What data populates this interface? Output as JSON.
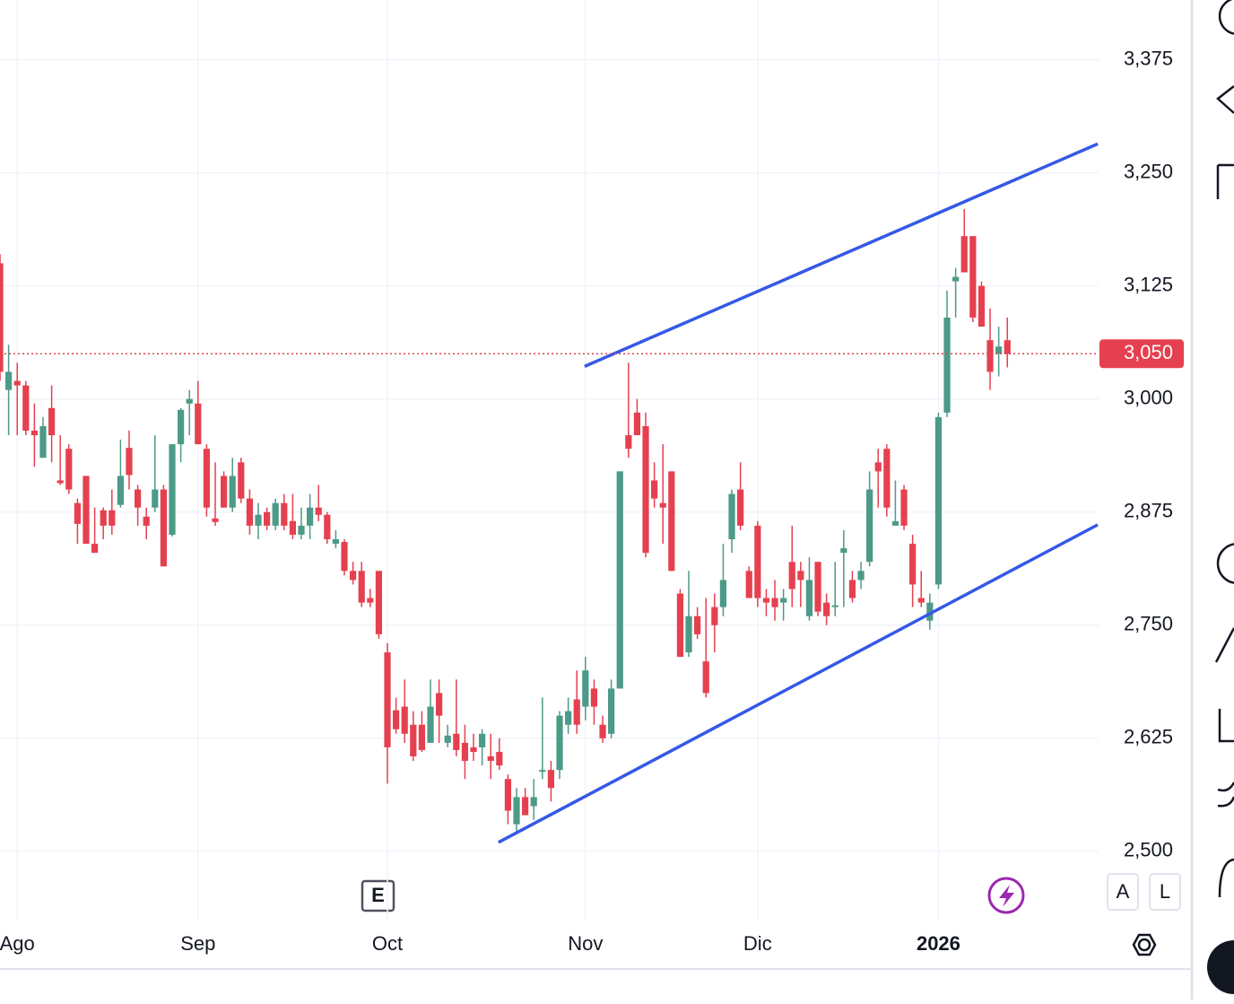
{
  "chart_data": {
    "type": "candlestick",
    "xticks": [
      {
        "value": 2,
        "label": "Ago"
      },
      {
        "value": 23,
        "label": "Sep"
      },
      {
        "value": 45,
        "label": "Oct"
      },
      {
        "value": 68,
        "label": "Nov"
      },
      {
        "value": 88,
        "label": "Dic"
      },
      {
        "value": 109,
        "label": "2026"
      }
    ],
    "xlim": [
      0,
      127.6
    ],
    "ylim": [
      2370,
      3441
    ],
    "yticks": [
      {
        "value": 2500,
        "label": "2,500"
      },
      {
        "value": 2625,
        "label": "2,625"
      },
      {
        "value": 2750,
        "label": "2,750"
      },
      {
        "value": 2875,
        "label": "2,875"
      },
      {
        "value": 3000,
        "label": "3,000"
      },
      {
        "value": 3125,
        "label": "3,125"
      },
      {
        "value": 3250,
        "label": "3,250"
      },
      {
        "value": 3375,
        "label": "3,375"
      }
    ],
    "grid": true,
    "up_color": "#4c9a87",
    "down_color": "#e5404f",
    "open": [
      3150,
      3010,
      3020,
      3015,
      2965,
      2935,
      2990,
      2910,
      2945,
      2885,
      2915,
      2840,
      2877,
      2877,
      2883,
      2946,
      2900,
      2870,
      2880,
      2900,
      2850,
      2950,
      2995,
      2995,
      2945,
      2868,
      2915,
      2880,
      2930,
      2890,
      2860,
      2875,
      2860,
      2885,
      2865,
      2850,
      2860,
      2880,
      2872,
      2840,
      2842,
      2810,
      2810,
      2780,
      2810,
      2720,
      2656,
      2660,
      2640,
      2640,
      2620,
      2675,
      2620,
      2630,
      2620,
      2615,
      2615,
      2605,
      2610,
      2580,
      2530,
      2560,
      2550,
      2588,
      2590,
      2590,
      2640,
      2668,
      2660,
      2680,
      2640,
      2630,
      2680,
      2960,
      2985,
      2970,
      2910,
      2885,
      2920,
      2785,
      2720,
      2760,
      2710,
      2770,
      2770,
      2845,
      2900,
      2810,
      2860,
      2780,
      2780,
      2775,
      2820,
      2810,
      2760,
      2820,
      2775,
      2770,
      2830,
      2800,
      2800,
      2820,
      2930,
      2945,
      2860,
      2900,
      2840,
      2780,
      2755,
      2795,
      2985,
      3130,
      3180,
      3180,
      3125,
      3065,
      3050,
      3065
    ],
    "high": [
      3160,
      3060,
      3040,
      3020,
      2995,
      2980,
      3015,
      2960,
      2950,
      2890,
      2915,
      2880,
      2880,
      2900,
      2955,
      2965,
      2905,
      2880,
      2960,
      2905,
      2950,
      2990,
      3010,
      3020,
      2950,
      2930,
      2920,
      2935,
      2935,
      2900,
      2885,
      2880,
      2890,
      2895,
      2895,
      2880,
      2895,
      2905,
      2875,
      2855,
      2845,
      2820,
      2820,
      2790,
      2810,
      2730,
      2670,
      2690,
      2655,
      2655,
      2690,
      2690,
      2640,
      2690,
      2640,
      2630,
      2635,
      2630,
      2625,
      2585,
      2570,
      2570,
      2580,
      2670,
      2600,
      2655,
      2670,
      2700,
      2715,
      2690,
      2650,
      2690,
      2920,
      3040,
      3000,
      2985,
      2930,
      2950,
      2920,
      2790,
      2810,
      2770,
      2780,
      2785,
      2840,
      2900,
      2930,
      2815,
      2865,
      2790,
      2800,
      2790,
      2860,
      2820,
      2825,
      2820,
      2785,
      2820,
      2855,
      2810,
      2820,
      2920,
      2945,
      2950,
      2910,
      2905,
      2850,
      2810,
      2785,
      2985,
      3120,
      3145,
      3210,
      3180,
      3130,
      3100,
      3080,
      3090
    ],
    "low": [
      3020,
      2960,
      2960,
      2960,
      2925,
      2935,
      2930,
      2905,
      2895,
      2840,
      2840,
      2830,
      2845,
      2850,
      2880,
      2900,
      2860,
      2845,
      2875,
      2815,
      2848,
      2930,
      2960,
      2950,
      2870,
      2860,
      2880,
      2875,
      2885,
      2850,
      2845,
      2855,
      2855,
      2855,
      2845,
      2845,
      2845,
      2865,
      2840,
      2835,
      2805,
      2795,
      2770,
      2770,
      2735,
      2575,
      2630,
      2620,
      2600,
      2610,
      2620,
      2620,
      2615,
      2605,
      2580,
      2600,
      2595,
      2580,
      2590,
      2530,
      2520,
      2540,
      2535,
      2580,
      2555,
      2580,
      2630,
      2630,
      2645,
      2640,
      2620,
      2625,
      2680,
      2935,
      2960,
      2825,
      2880,
      2840,
      2810,
      2715,
      2715,
      2735,
      2670,
      2720,
      2760,
      2830,
      2855,
      2780,
      2770,
      2760,
      2755,
      2755,
      2770,
      2770,
      2755,
      2760,
      2750,
      2760,
      2770,
      2775,
      2790,
      2815,
      2880,
      2870,
      2860,
      2855,
      2770,
      2770,
      2745,
      2790,
      2980,
      3090,
      3140,
      3085,
      3080,
      3010,
      3025,
      3035
    ],
    "close": [
      3030,
      3030,
      3015,
      2965,
      2960,
      2970,
      2960,
      2907,
      2900,
      2862,
      2840,
      2830,
      2860,
      2860,
      2915,
      2916,
      2880,
      2860,
      2900,
      2815,
      2950,
      2988,
      3000,
      2950,
      2880,
      2864,
      2880,
      2915,
      2890,
      2860,
      2872,
      2860,
      2885,
      2860,
      2850,
      2860,
      2880,
      2872,
      2845,
      2845,
      2810,
      2800,
      2775,
      2775,
      2740,
      2615,
      2635,
      2630,
      2605,
      2612,
      2660,
      2650,
      2628,
      2612,
      2600,
      2610,
      2630,
      2600,
      2595,
      2545,
      2560,
      2540,
      2560,
      2590,
      2570,
      2650,
      2655,
      2640,
      2700,
      2660,
      2625,
      2680,
      2920,
      2945,
      2960,
      2830,
      2890,
      2880,
      2810,
      2715,
      2760,
      2740,
      2675,
      2750,
      2800,
      2895,
      2860,
      2780,
      2780,
      2775,
      2770,
      2780,
      2790,
      2800,
      2800,
      2765,
      2760,
      2772,
      2835,
      2780,
      2810,
      2900,
      2920,
      2880,
      2865,
      2860,
      2795,
      2775,
      2775,
      2980,
      3090,
      3135,
      3140,
      3090,
      3080,
      3030,
      3058,
      3050
    ],
    "last_price": {
      "value": 3050,
      "label": "3,050"
    },
    "trendlines": [
      {
        "color": "#3558e6",
        "x": [
          67.9,
          127.5
        ],
        "y": [
          3036,
          3282
        ]
      },
      {
        "color": "#3558e6",
        "x": [
          57.9,
          127.5
        ],
        "y": [
          2510,
          2861
        ]
      }
    ],
    "event_marker": "E",
    "scale_buttons": [
      "A",
      "L"
    ]
  }
}
